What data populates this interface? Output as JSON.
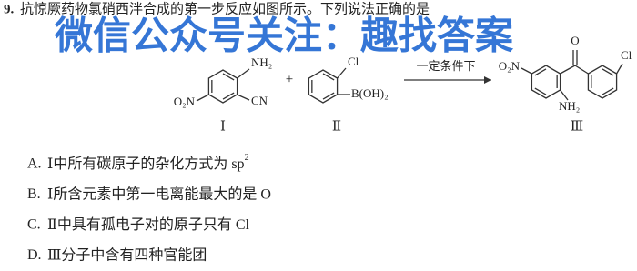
{
  "question": {
    "number": "9.",
    "text": "抗惊厥药物氯硝西泮合成的第一步反应如图所示。下列说法正确的是"
  },
  "watermark": "微信公众号关注：趣找答案",
  "reaction": {
    "compound_1": {
      "amino": "NH₂",
      "nitro": "O₂N",
      "cyano": "CN",
      "label": "Ⅰ"
    },
    "plus": "+",
    "compound_2": {
      "chloro": "Cl",
      "boronic": "B(OH)₂",
      "label": "Ⅱ"
    },
    "condition": "一定条件下",
    "compound_3": {
      "oxygen": "O",
      "chloro": "Cl",
      "nitro": "O₂N",
      "amino": "NH₂",
      "label": "Ⅲ"
    }
  },
  "options": [
    {
      "letter": "A.",
      "text": "Ⅰ中所有碳原子的杂化方式为 sp",
      "sup": "2"
    },
    {
      "letter": "B.",
      "text": "Ⅰ所含元素中第一电离能最大的是 O"
    },
    {
      "letter": "C.",
      "text": "Ⅱ中具有孤电子对的原子只有 Cl"
    },
    {
      "letter": "D.",
      "text": "Ⅲ分子中含有四种官能团"
    }
  ]
}
